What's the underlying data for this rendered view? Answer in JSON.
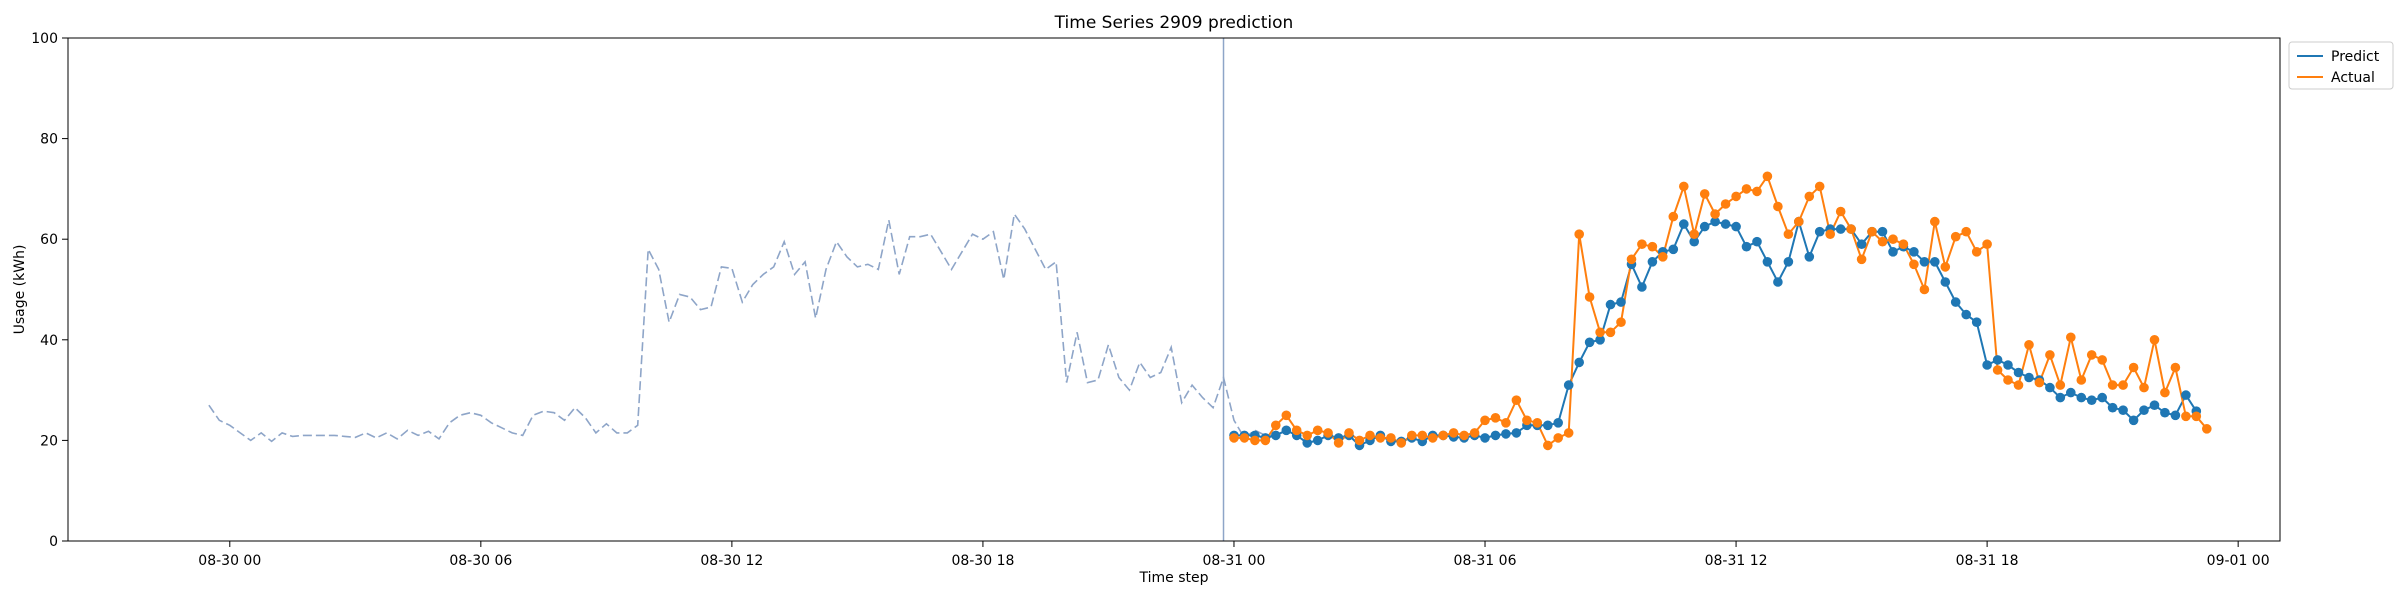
{
  "chart_data": {
    "type": "line",
    "title": "Time Series 2909 prediction",
    "xlabel": "Time step",
    "ylabel": "Usage (kWh)",
    "ylim": [
      0,
      100
    ],
    "xlim": [
      "2025-08-29 20:08",
      "2025-09-01 01:00"
    ],
    "y_ticks": [
      0,
      20,
      40,
      60,
      80,
      100
    ],
    "x_ticks": [
      {
        "t": "2025-08-30 00:00",
        "label": "08-30 00"
      },
      {
        "t": "2025-08-30 06:00",
        "label": "08-30 06"
      },
      {
        "t": "2025-08-30 12:00",
        "label": "08-30 12"
      },
      {
        "t": "2025-08-30 18:00",
        "label": "08-30 18"
      },
      {
        "t": "2025-08-31 00:00",
        "label": "08-31 00"
      },
      {
        "t": "2025-08-31 06:00",
        "label": "08-31 06"
      },
      {
        "t": "2025-08-31 12:00",
        "label": "08-31 12"
      },
      {
        "t": "2025-08-31 18:00",
        "label": "08-31 18"
      },
      {
        "t": "2025-09-01 00:00",
        "label": "09-01 00"
      }
    ],
    "grid": false,
    "legend": "top-right outside",
    "interval_minutes": 15,
    "forecast_start": "2025-08-30 23:45",
    "series": [
      {
        "name": "",
        "style": "dashed",
        "color": "#8ea5c8",
        "x_start": "2025-08-29 23:30",
        "values": [
          27,
          24,
          23,
          21.5,
          20,
          21.5,
          19.8,
          21.5,
          20.8,
          21,
          21,
          21,
          21,
          20.8,
          20.6,
          21.5,
          20.5,
          21.5,
          20.3,
          22,
          21,
          21.8,
          20.3,
          23.5,
          25,
          25.5,
          25,
          23.5,
          22.5,
          21.5,
          21,
          25,
          25.8,
          25.5,
          24,
          26.5,
          24.5,
          21.5,
          23.3,
          21.5,
          21.5,
          23,
          58,
          54,
          43.5,
          49,
          48.5,
          46,
          46.5,
          54.5,
          54.2,
          47.5,
          51,
          53,
          54.5,
          59.5,
          53,
          55.5,
          44.3,
          54,
          59.5,
          56.5,
          54.5,
          55,
          54,
          63.8,
          53,
          60.5,
          60.5,
          61,
          57.5,
          54,
          57.5,
          61,
          60,
          61.5,
          52,
          65,
          62,
          58,
          54,
          55.5,
          31.5,
          41.5,
          31.5,
          32,
          39,
          32.5,
          30,
          35.5,
          32.5,
          33.5,
          38.5,
          27.5,
          31,
          28.5,
          26.5,
          32.5,
          24,
          20.5,
          22,
          21,
          21
        ]
      },
      {
        "name": "Predict",
        "style": "solid-marker",
        "color": "#1f77b4",
        "x_start": "2025-08-31 00:00",
        "values": [
          21,
          21,
          21,
          20.5,
          21,
          22,
          21,
          19.5,
          20,
          21,
          20.5,
          21,
          19,
          20,
          21,
          19.8,
          19.8,
          20.5,
          19.8,
          21,
          21,
          20.7,
          20.5,
          21,
          20.5,
          21,
          21.3,
          21.5,
          23,
          23,
          23,
          23.5,
          31,
          35.5,
          39.5,
          40,
          47,
          47.5,
          55,
          50.5,
          55.5,
          57.5,
          58,
          63,
          59.5,
          62.5,
          63.5,
          63,
          62.5,
          58.5,
          59.5,
          55.5,
          51.5,
          55.5,
          63.5,
          56.5,
          61.5,
          62,
          62,
          62,
          59,
          61.5,
          61.5,
          57.5,
          58.5,
          57.5,
          55.5,
          55.5,
          51.5,
          47.5,
          45,
          43.5,
          35,
          36,
          35,
          33.5,
          32.5,
          32,
          30.5,
          28.5,
          29.5,
          28.5,
          28,
          28.5,
          26.5,
          26,
          24,
          26,
          27,
          25.5,
          25,
          29,
          25.8
        ]
      },
      {
        "name": "Actual",
        "style": "solid-marker",
        "color": "#ff7f0e",
        "x_start": "2025-08-31 00:00",
        "values": [
          20.5,
          20.5,
          20,
          20,
          23,
          25,
          22,
          21,
          22,
          21.5,
          19.5,
          21.5,
          20,
          21,
          20.5,
          20.5,
          19.5,
          21,
          21,
          20.5,
          21,
          21.5,
          21,
          21.5,
          24,
          24.5,
          23.5,
          28,
          24,
          23.5,
          19,
          20.5,
          21.5,
          61,
          48.5,
          41.5,
          41.5,
          43.5,
          56,
          59,
          58.5,
          56.5,
          64.5,
          70.5,
          61,
          69,
          65,
          67,
          68.5,
          70,
          69.5,
          72.5,
          66.5,
          61,
          63.5,
          68.5,
          70.5,
          61,
          65.5,
          62,
          56,
          61.5,
          59.5,
          60,
          59,
          55,
          50,
          63.5,
          54.5,
          60.5,
          61.5,
          57.5,
          59,
          34,
          32,
          31,
          39,
          31.5,
          37,
          31,
          40.5,
          32,
          37,
          36,
          31,
          31,
          34.5,
          30.5,
          40,
          29.5,
          34.5,
          24.8,
          24.8,
          22.3
        ]
      }
    ]
  }
}
